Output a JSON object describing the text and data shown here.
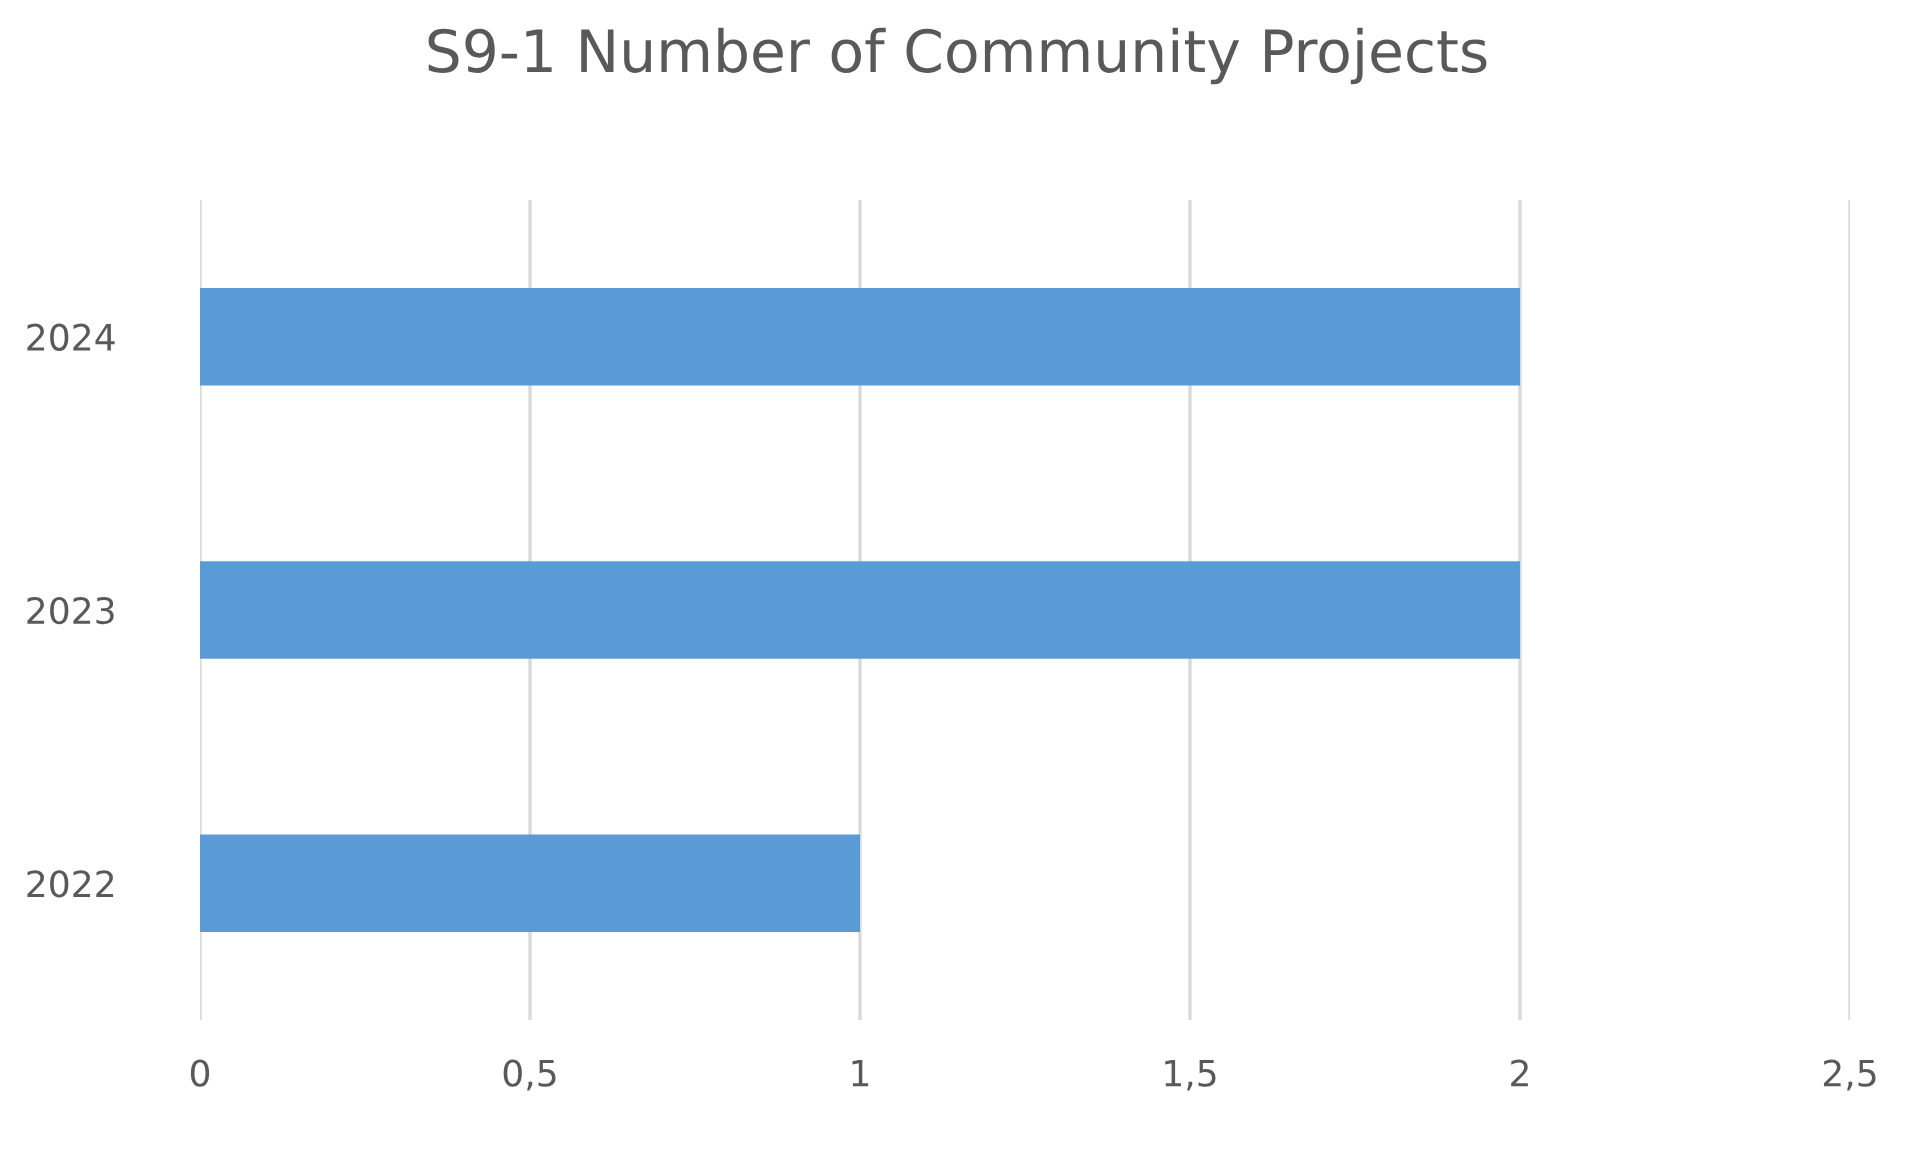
{
  "chart_data": {
    "type": "bar",
    "orientation": "horizontal",
    "title": "S9-1 Number of Community Projects",
    "categories": [
      "2024",
      "2023",
      "2022"
    ],
    "values": [
      2,
      2,
      1
    ],
    "color": "#5b9bd5",
    "xlim": [
      0,
      2.5
    ],
    "xticks": [
      0,
      {
        "value": 0.5,
        "label": "0,5"
      },
      1,
      {
        "value": 1.5,
        "label": "1,5"
      },
      2,
      {
        "value": 2.5,
        "label": "2,5"
      }
    ],
    "grid": "x"
  }
}
